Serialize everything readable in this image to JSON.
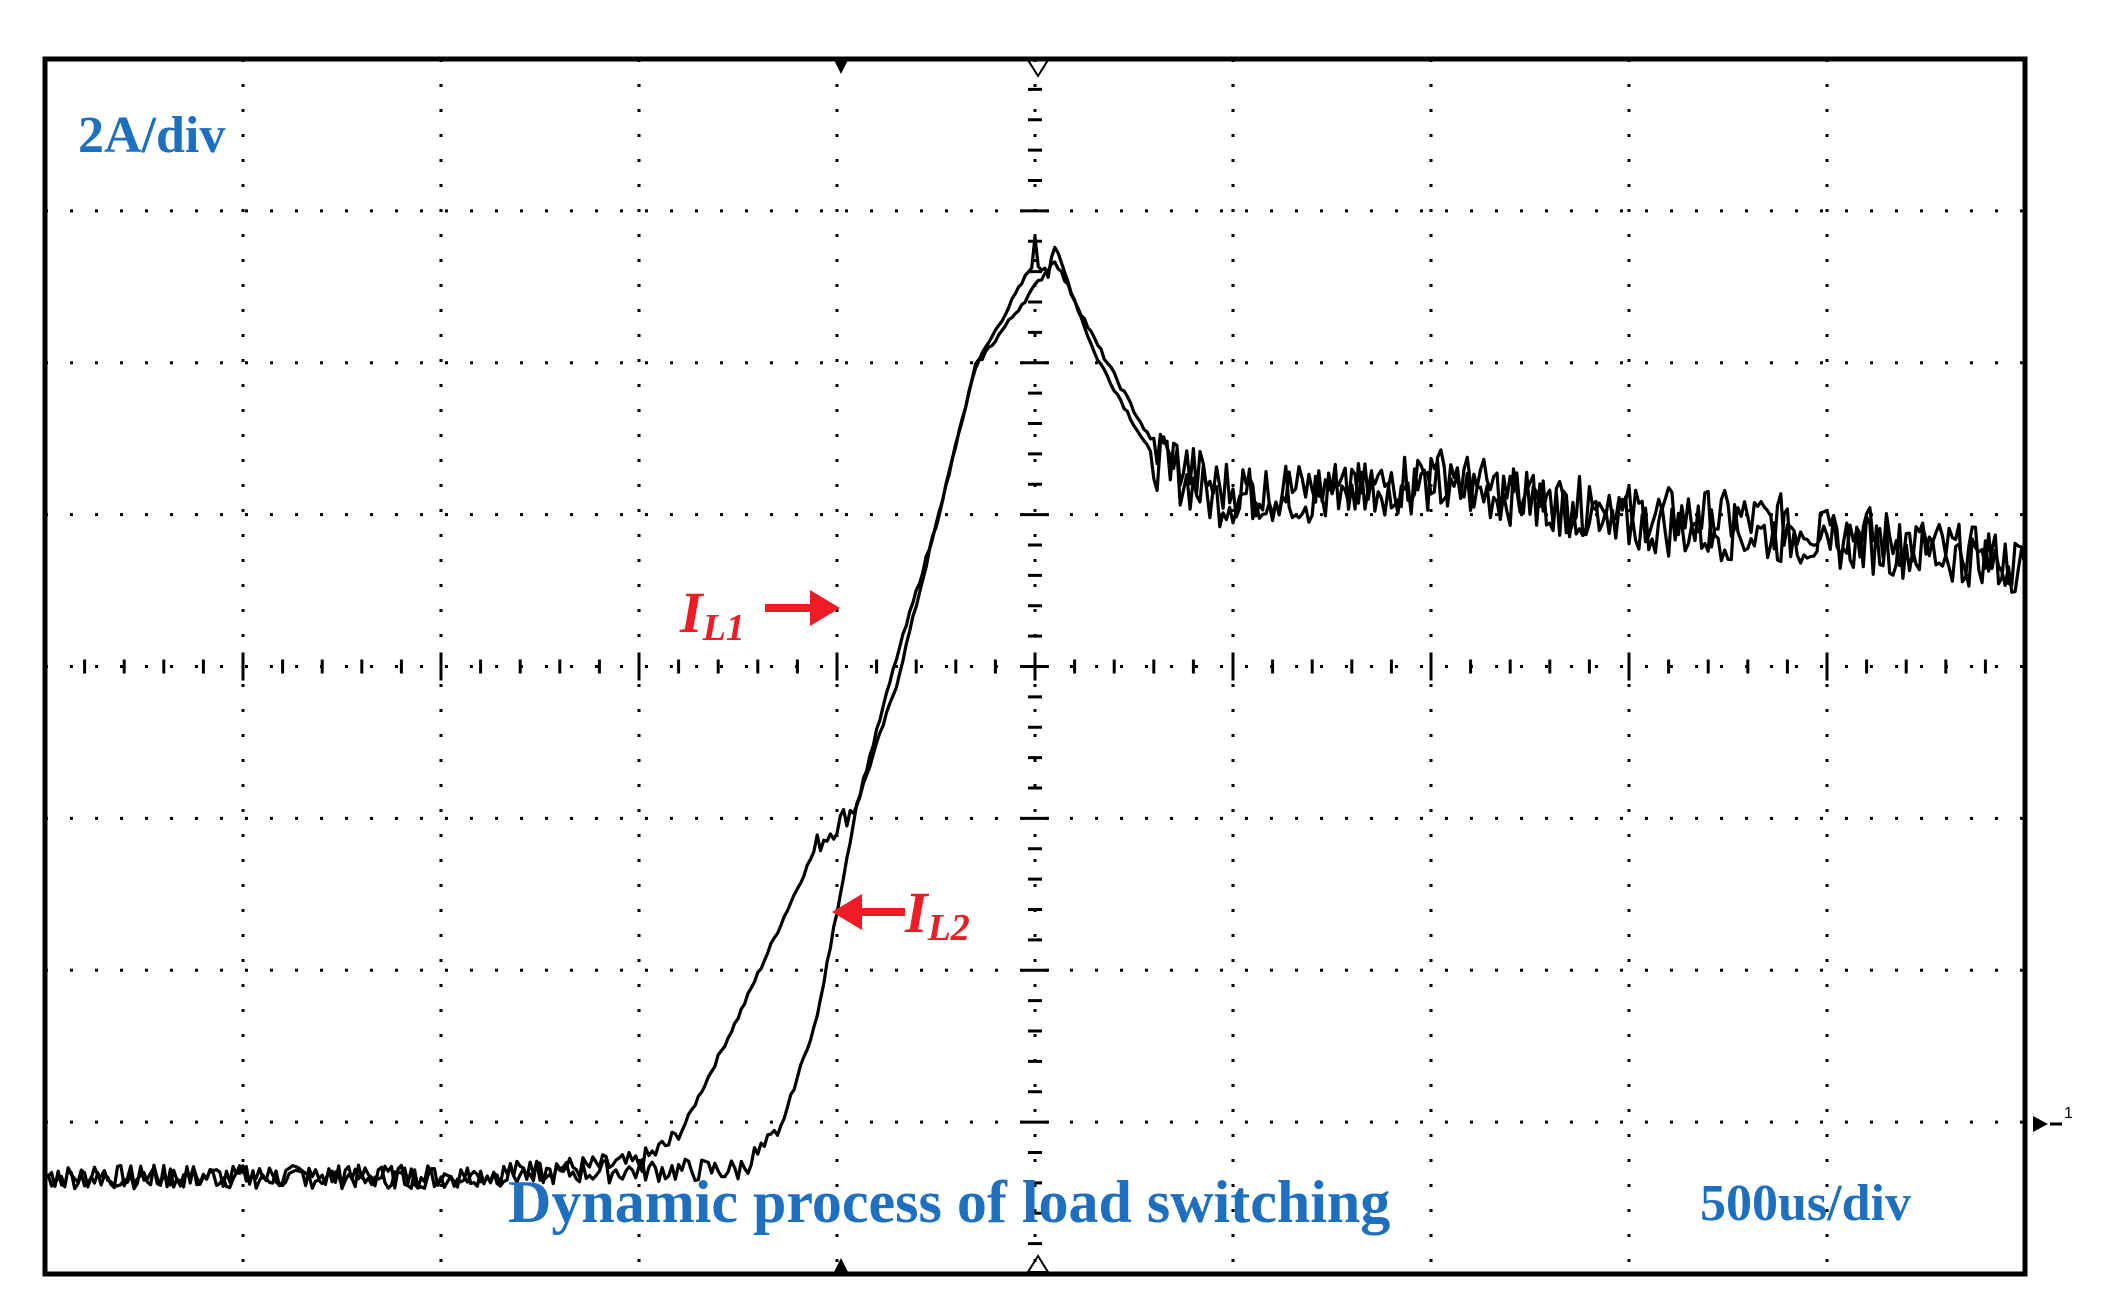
{
  "labels": {
    "vertical_scale": "2A/div",
    "time_scale": "500us/div",
    "caption": "Dynamic process of load switching",
    "trace1_symbol": "I",
    "trace1_sub": "L1",
    "trace2_symbol": "I",
    "trace2_sub": "L2",
    "ground_marker": "1"
  },
  "colors": {
    "trace": "#000000",
    "grid": "#000000",
    "annotation": "#ee1c25",
    "text": "#1f6fc0"
  },
  "chart_data": {
    "type": "line",
    "x_unit": "div",
    "y_unit": "div",
    "xlim": [
      0,
      10
    ],
    "ylim": [
      0,
      8
    ],
    "grid": true,
    "series": [
      {
        "name": "IL1",
        "x": [
          0,
          1,
          2,
          3,
          3.2,
          3.5,
          3.9,
          4.1,
          4.3,
          4.5,
          4.7,
          5.0,
          5.1,
          5.3,
          5.6,
          5.9,
          6.5,
          7,
          8,
          9,
          10
        ],
        "y": [
          0.0,
          0.0,
          0.0,
          0.1,
          0.3,
          1.2,
          2.5,
          2.8,
          3.7,
          4.9,
          6.1,
          6.9,
          7.0,
          6.2,
          5.4,
          5.1,
          5.2,
          5.2,
          5.0,
          4.9,
          4.6
        ]
      },
      {
        "name": "IL2",
        "x": [
          0,
          1,
          2,
          3,
          3.5,
          3.7,
          3.9,
          4.1,
          4.3,
          4.5,
          4.7,
          5.0,
          5.1,
          5.3,
          5.6,
          5.9,
          6.5,
          7,
          8,
          9,
          10
        ],
        "y": [
          0.0,
          0.0,
          0.0,
          0.05,
          0.05,
          0.3,
          1.2,
          2.8,
          3.9,
          4.9,
          6.1,
          6.7,
          6.9,
          6.3,
          5.5,
          5.2,
          5.1,
          5.3,
          4.9,
          4.8,
          4.6
        ]
      }
    ]
  }
}
